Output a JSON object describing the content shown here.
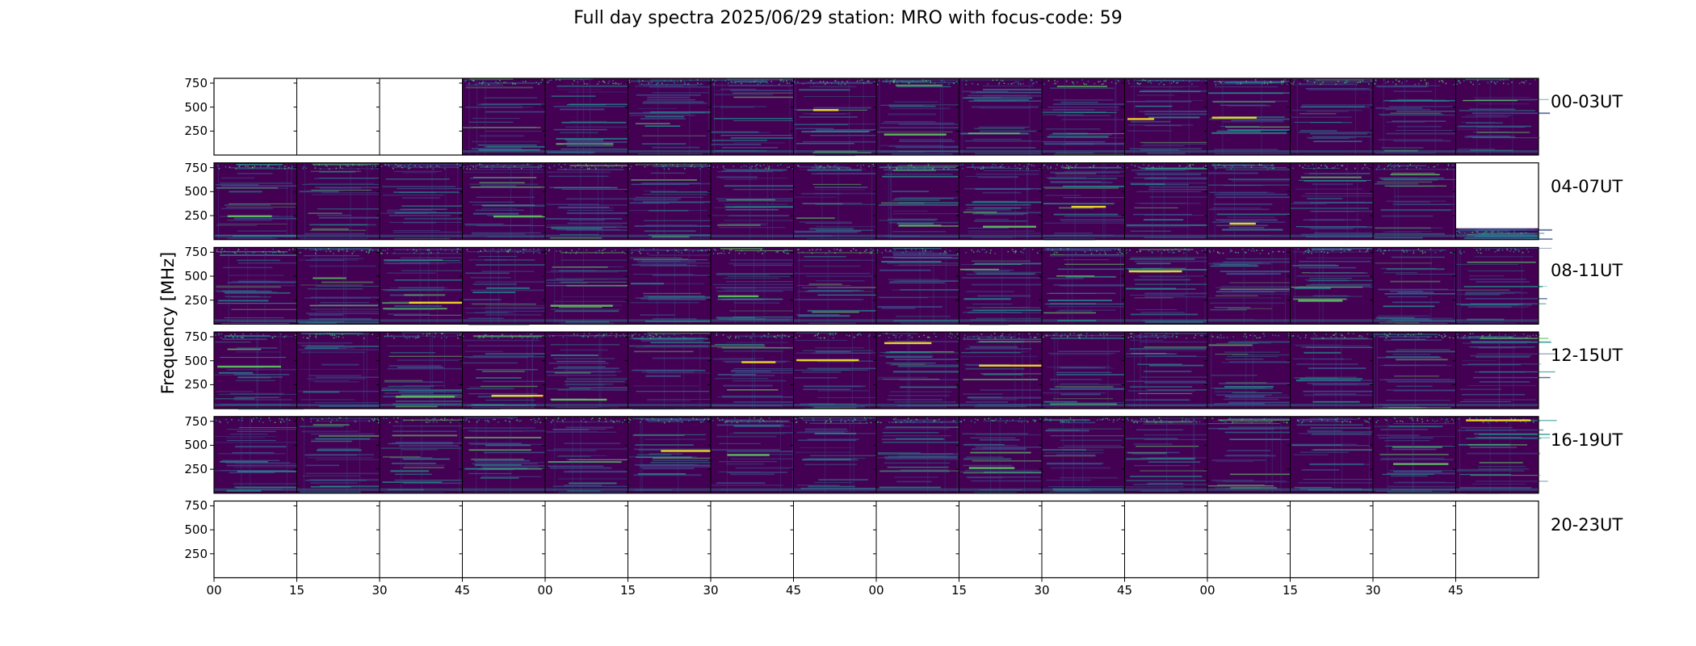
{
  "title": "Full day spectra 2025/06/29 station: MRO with focus-code: 59",
  "chart_data": {
    "type": "heatmap",
    "title": "Full day spectra 2025/06/29 station: MRO with focus-code: 59",
    "ylabel": "Frequency [MHz]",
    "yticks": [
      250,
      500,
      750
    ],
    "ylim": [
      0,
      800
    ],
    "xticks": [
      "00",
      "15",
      "30",
      "45",
      "00",
      "15",
      "30",
      "45",
      "00",
      "15",
      "30",
      "45",
      "00",
      "15",
      "30",
      "45"
    ],
    "colormap": "viridis",
    "colors": {
      "background": "#440154",
      "mid": "#3b528b",
      "teal": "#21918c",
      "bright": "#fde725"
    },
    "rows": [
      {
        "label": "00-03UT",
        "panels": [
          "empty",
          "empty",
          "empty",
          "data",
          "data",
          "data",
          "data",
          "data",
          "data",
          "data",
          "data",
          "data",
          "data",
          "data",
          "data",
          "data"
        ]
      },
      {
        "label": "04-07UT",
        "panels": [
          "data",
          "data",
          "data",
          "data",
          "data",
          "data",
          "data",
          "data",
          "data",
          "data",
          "data",
          "data",
          "data",
          "data",
          "data",
          "partial"
        ]
      },
      {
        "label": "08-11UT",
        "panels": [
          "data",
          "data",
          "data",
          "data",
          "data",
          "data",
          "data",
          "data",
          "data",
          "data",
          "data",
          "data",
          "data",
          "data",
          "data",
          "data"
        ]
      },
      {
        "label": "12-15UT",
        "panels": [
          "data",
          "data",
          "data",
          "data",
          "data",
          "data",
          "data",
          "data",
          "data",
          "data",
          "data",
          "data",
          "data",
          "data",
          "data",
          "data"
        ]
      },
      {
        "label": "16-19UT",
        "panels": [
          "data",
          "data",
          "data",
          "data",
          "data",
          "data",
          "data",
          "data",
          "data",
          "data",
          "data",
          "data",
          "data",
          "data",
          "data",
          "data"
        ]
      },
      {
        "label": "20-23UT",
        "panels": [
          "empty",
          "empty",
          "empty",
          "empty",
          "empty",
          "empty",
          "empty",
          "empty",
          "empty",
          "empty",
          "empty",
          "empty",
          "empty",
          "empty",
          "empty",
          "empty"
        ]
      }
    ]
  }
}
